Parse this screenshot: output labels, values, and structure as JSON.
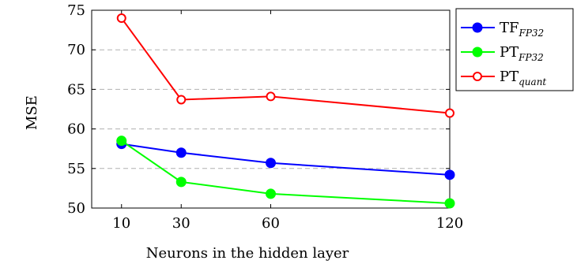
{
  "chart_data": {
    "type": "line",
    "xlabel": "Neurons in the hidden layer",
    "ylabel": "MSE",
    "x": [
      10,
      30,
      60,
      120
    ],
    "x_tick_labels": [
      "10",
      "30",
      "60",
      "120"
    ],
    "xlim": [
      0,
      120
    ],
    "ylim": [
      50,
      75
    ],
    "y_ticks": [
      50,
      55,
      60,
      65,
      70,
      75
    ],
    "grid": "horizontal-dashed",
    "legend_position": "top-right-outside",
    "series": [
      {
        "name_base": "TF",
        "name_sub": "FP32",
        "color": "#0000ff",
        "marker": "filled-circle",
        "values": [
          58.1,
          57.0,
          55.7,
          54.2
        ]
      },
      {
        "name_base": "PT",
        "name_sub": "FP32",
        "color": "#00ff00",
        "marker": "filled-circle",
        "values": [
          58.5,
          53.3,
          51.8,
          50.6
        ]
      },
      {
        "name_base": "PT",
        "name_sub": "quant",
        "color": "#ff0000",
        "marker": "open-circle",
        "values": [
          74.0,
          63.7,
          64.1,
          62.0
        ]
      }
    ]
  }
}
